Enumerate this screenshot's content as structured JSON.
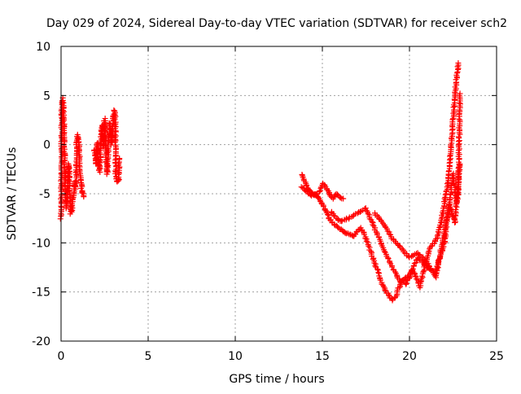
{
  "chart_data": {
    "type": "scatter",
    "title": "Day 029 of 2024, Sidereal Day-to-day VTEC variation (SDTVAR) for receiver sch2",
    "xlabel": "GPS time / hours",
    "ylabel": "SDTVAR / TECUs",
    "xlim": [
      0,
      25
    ],
    "ylim": [
      -20,
      10
    ],
    "x_ticks": [
      0,
      5,
      10,
      15,
      20,
      25
    ],
    "y_ticks": [
      -20,
      -15,
      -10,
      -5,
      0,
      5,
      10
    ],
    "grid": true,
    "marker": "+",
    "series_color": "#ff0000",
    "series": [
      {
        "name": "SDTVAR",
        "segments": [
          {
            "x": [
              0.0,
              0.05,
              0.1,
              0.15,
              0.2,
              0.25,
              0.3,
              0.35,
              0.4,
              0.45,
              0.5,
              0.55,
              0.6,
              0.65,
              0.7,
              0.75,
              0.8,
              0.85,
              0.9,
              0.95,
              1.0,
              1.05,
              1.1,
              1.15,
              1.2,
              1.25,
              1.3
            ],
            "y": [
              -7.5,
              3.5,
              4.7,
              2.5,
              -1.0,
              -4.5,
              -6.5,
              -5.0,
              -3.0,
              -2.0,
              -5.5,
              -7.0,
              -6.8,
              -6.0,
              -5.5,
              -4.5,
              -3.8,
              -4.5,
              0.5,
              1.0,
              0.5,
              -1.0,
              -3.0,
              -4.0,
              -4.8,
              -5.0,
              -5.3
            ]
          },
          {
            "x": [
              1.9,
              1.95,
              2.0,
              2.05,
              2.1,
              2.15,
              2.2,
              2.25,
              2.3,
              2.35,
              2.4,
              2.45,
              2.5,
              2.55,
              2.6,
              2.65,
              2.7,
              2.75,
              2.8,
              2.85,
              2.9,
              2.95,
              3.0,
              3.05,
              3.1,
              3.15,
              3.2,
              3.25,
              3.3,
              3.35
            ],
            "y": [
              -0.5,
              -1.2,
              -2.0,
              -0.3,
              0.2,
              -1.5,
              -2.8,
              -0.8,
              0.8,
              2.0,
              1.0,
              -0.2,
              2.6,
              1.5,
              -1.5,
              -3.0,
              -0.5,
              0.8,
              2.2,
              1.0,
              0.0,
              1.5,
              3.0,
              3.5,
              3.2,
              -3.0,
              -3.5,
              -3.8,
              -3.6,
              -1.4
            ]
          },
          {
            "x": [
              13.8,
              14.0,
              14.2,
              14.4,
              14.6,
              14.8,
              15.0,
              15.2,
              15.4,
              15.6,
              15.8,
              16.0,
              16.2
            ],
            "y": [
              -3.0,
              -3.8,
              -4.5,
              -5.0,
              -5.2,
              -4.8,
              -4.0,
              -4.3,
              -5.0,
              -5.5,
              -5.0,
              -5.3,
              -5.5
            ]
          },
          {
            "x": [
              13.8,
              14.0,
              14.2,
              14.4,
              14.6,
              14.8,
              15.0,
              15.2,
              15.4,
              15.6,
              15.8,
              16.0,
              16.2,
              16.4,
              16.6,
              16.8,
              17.0,
              17.2,
              17.4,
              17.6,
              17.8,
              18.0,
              18.2,
              18.4,
              18.6,
              18.8,
              19.0,
              19.2,
              19.4,
              19.6,
              19.8,
              20.0,
              20.2,
              20.4,
              20.6,
              20.8,
              21.0,
              21.2,
              21.4,
              21.6,
              21.8,
              22.0,
              22.2,
              22.4,
              22.6,
              22.8
            ],
            "y": [
              -4.3,
              -4.6,
              -5.0,
              -5.2,
              -5.0,
              -5.5,
              -6.0,
              -6.8,
              -7.5,
              -8.0,
              -8.3,
              -8.6,
              -8.8,
              -9.0,
              -9.2,
              -9.3,
              -8.8,
              -8.5,
              -9.0,
              -10.0,
              -11.0,
              -12.0,
              -13.0,
              -14.0,
              -14.8,
              -15.3,
              -15.8,
              -15.5,
              -14.5,
              -13.8,
              -14.2,
              -13.5,
              -12.8,
              -13.5,
              -14.5,
              -13.0,
              -11.5,
              -10.5,
              -10.0,
              -9.5,
              -8.0,
              -6.0,
              -4.0,
              0.0,
              5.0,
              8.3
            ]
          },
          {
            "x": [
              15.5,
              16.0,
              16.5,
              17.0,
              17.5,
              18.0,
              18.5,
              19.0,
              19.5,
              20.0,
              20.5,
              21.0,
              21.5,
              22.0,
              22.5,
              22.7,
              22.8,
              22.9
            ],
            "y": [
              -6.8,
              -7.8,
              -7.5,
              -7.0,
              -6.5,
              -8.5,
              -10.5,
              -12.5,
              -14.0,
              -13.2,
              -11.5,
              -12.5,
              -13.0,
              -10.0,
              -3.0,
              -6.0,
              -5.0,
              5.2
            ]
          },
          {
            "x": [
              18.0,
              18.5,
              19.0,
              19.5,
              20.0,
              20.5,
              21.0,
              21.5,
              22.0,
              22.3,
              22.6,
              22.9
            ],
            "y": [
              -7.0,
              -8.0,
              -9.5,
              -10.5,
              -11.5,
              -11.0,
              -12.0,
              -13.5,
              -9.0,
              -6.0,
              -8.0,
              -2.0
            ]
          }
        ]
      }
    ]
  }
}
